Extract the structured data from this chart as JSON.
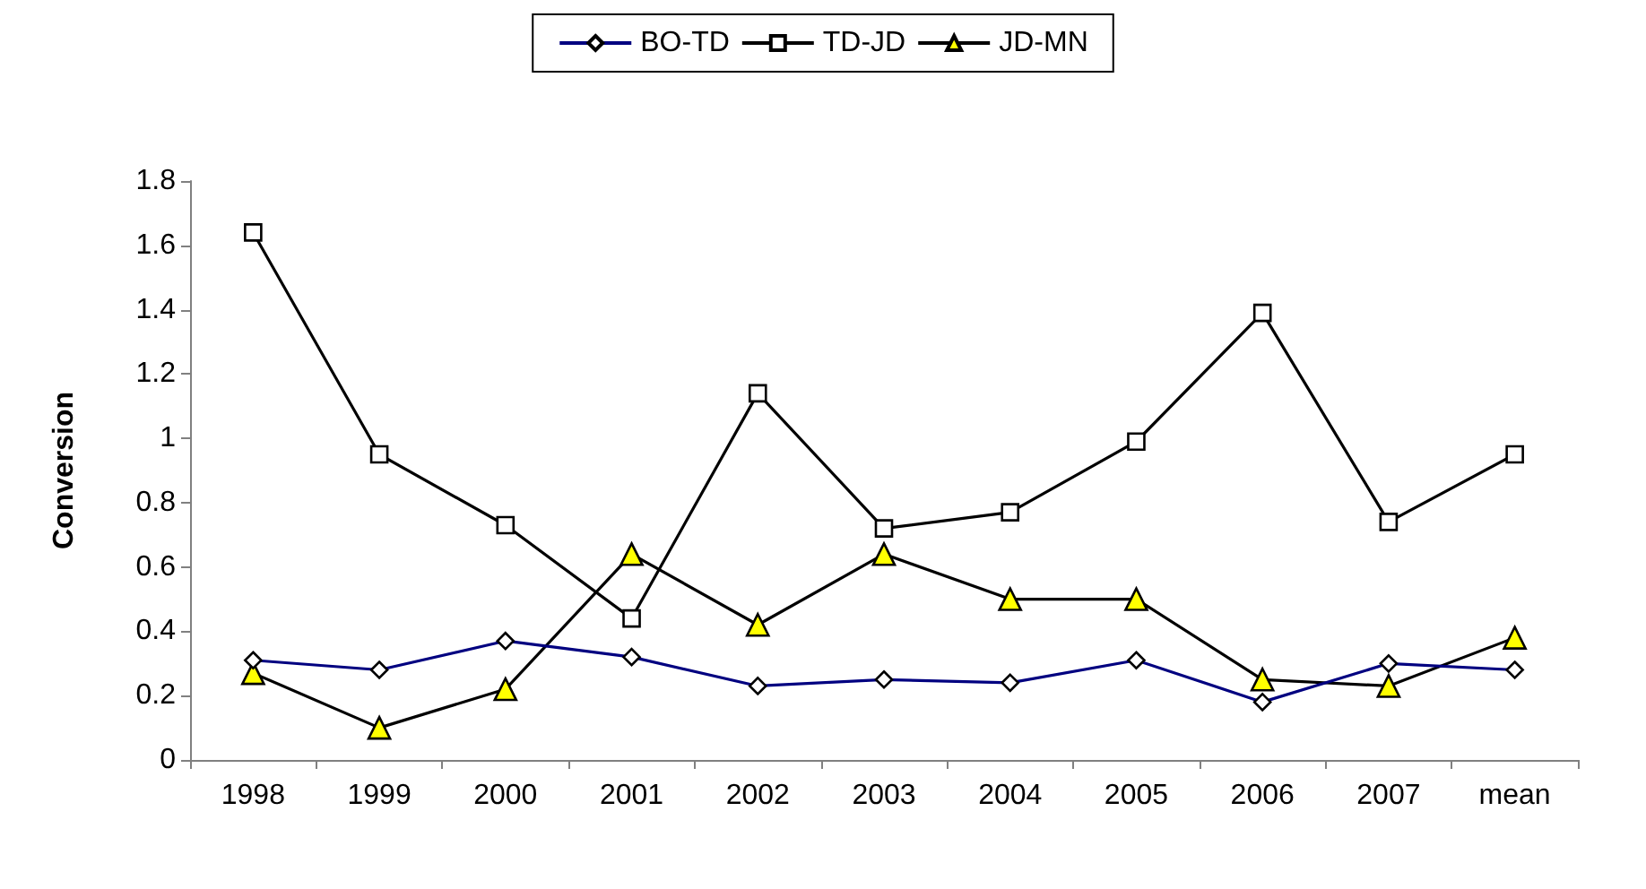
{
  "chart_data": {
    "type": "line",
    "ylabel": "Conversion",
    "categories": [
      "1998",
      "1999",
      "2000",
      "2001",
      "2002",
      "2003",
      "2004",
      "2005",
      "2006",
      "2007",
      "mean"
    ],
    "series": [
      {
        "name": "BO-TD",
        "color": "#000080",
        "marker": "diamond",
        "values": [
          0.31,
          0.28,
          0.37,
          0.32,
          0.23,
          0.25,
          0.24,
          0.31,
          0.18,
          0.3,
          0.28
        ]
      },
      {
        "name": "TD-JD",
        "color": "#000000",
        "marker": "square",
        "values": [
          1.64,
          0.95,
          0.73,
          0.44,
          1.14,
          0.72,
          0.77,
          0.99,
          1.39,
          0.74,
          0.95
        ]
      },
      {
        "name": "JD-MN",
        "color": "#000000",
        "marker": "triangle",
        "values": [
          0.27,
          0.1,
          0.22,
          0.64,
          0.42,
          0.64,
          0.5,
          0.5,
          0.25,
          0.23,
          0.38
        ]
      }
    ],
    "ylim": [
      0,
      1.8
    ],
    "yticks": [
      0,
      0.2,
      0.4,
      0.6,
      0.8,
      1,
      1.2,
      1.4,
      1.6,
      1.8
    ],
    "grid": false,
    "legend": "top",
    "line_style": "solid"
  }
}
